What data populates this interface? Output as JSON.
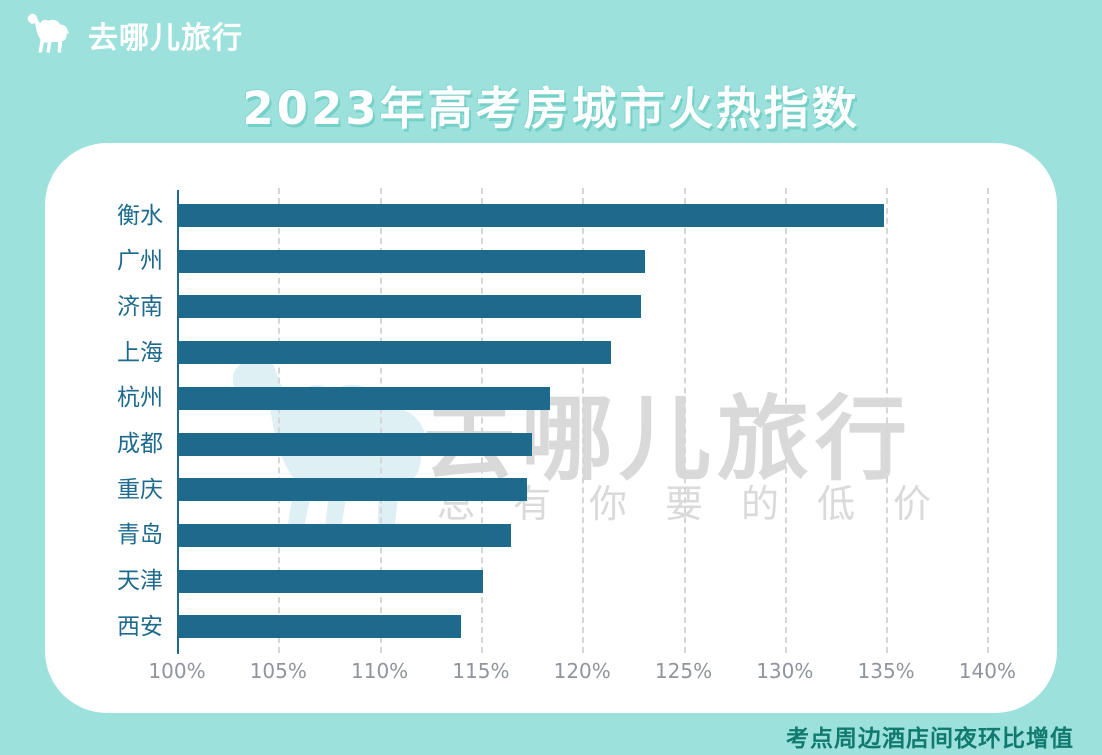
{
  "header": {
    "logo_text": "去哪儿旅行",
    "title": "2023年高考房城市火热指数"
  },
  "watermark": {
    "brand": "去哪儿旅行",
    "slogan": "总有你要的低价"
  },
  "footnote": "考点周边酒店间夜环比增值",
  "colors": {
    "background": "#9de1dd",
    "card": "#ffffff",
    "bar": "#1d6a8c",
    "city_label": "#1d6a8c",
    "axis_tick_label": "#8f959d",
    "gridline": "#d6d6d6",
    "title_text": "#ffffff",
    "title_shadow": "#60c7bc",
    "footnote_text": "#117a6f",
    "watermark_text": "#d9d9d9",
    "watermark_camel": "#d9eef3"
  },
  "chart_data": {
    "type": "bar",
    "orientation": "horizontal",
    "title": "2023年高考房城市火热指数",
    "categories": [
      "衡水",
      "广州",
      "济南",
      "上海",
      "杭州",
      "成都",
      "重庆",
      "青岛",
      "天津",
      "西安"
    ],
    "values": [
      134.8,
      123.0,
      122.8,
      121.3,
      118.3,
      117.4,
      117.2,
      116.4,
      115.0,
      113.9
    ],
    "unit": "%",
    "x_ticks": [
      "100%",
      "105%",
      "110%",
      "115%",
      "120%",
      "125%",
      "130%",
      "135%",
      "140%"
    ],
    "xlim": [
      100,
      140
    ],
    "grid": "vertical-dashed",
    "legend": "none",
    "note": "考点周边酒店间夜环比增值"
  }
}
